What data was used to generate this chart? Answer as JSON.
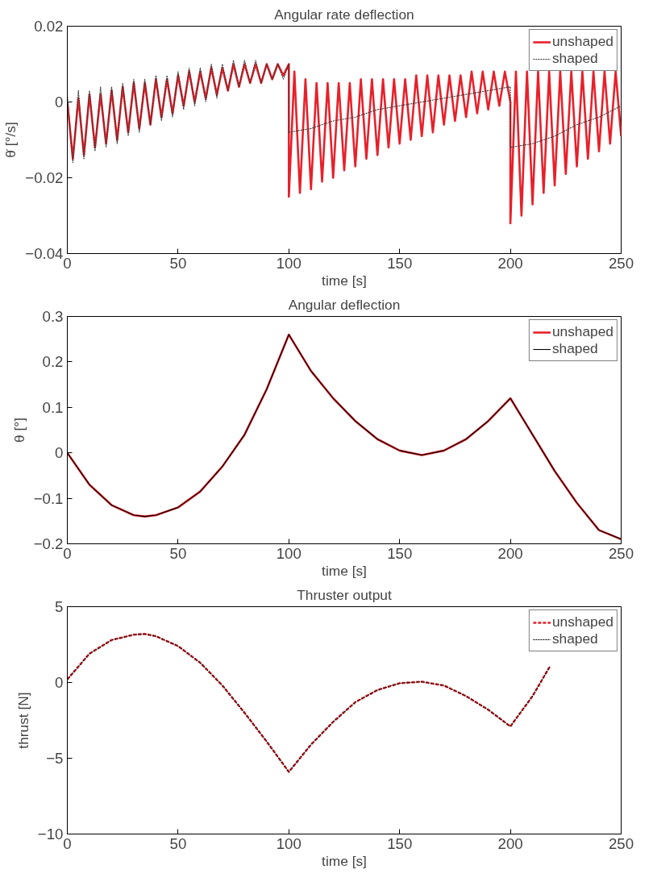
{
  "chart_data": [
    {
      "type": "line",
      "title": "Angular rate deflection",
      "xlabel": "time [s]",
      "ylabel": "θ̇ [°/s]",
      "xlim": [
        0,
        250
      ],
      "xticks": [
        0,
        50,
        100,
        150,
        200,
        250
      ],
      "ylim": [
        -0.04,
        0.02
      ],
      "yticks": [
        {
          "value": -0.04,
          "label": "−0.04"
        },
        {
          "value": -0.02,
          "label": "−0.02"
        },
        0,
        0.02
      ],
      "grid": false,
      "legend": "top right",
      "series": [
        {
          "name": "unshaped",
          "color": "#e8202a",
          "line_style": "solid",
          "x": [
            0,
            2.5,
            5,
            7.5,
            10,
            12.5,
            15,
            17.5,
            20,
            22.5,
            25,
            27.5,
            30,
            32.5,
            35,
            37.5,
            40,
            42.5,
            45,
            47.5,
            50,
            52.5,
            55,
            57.5,
            60,
            62.5,
            65,
            67.5,
            70,
            72.5,
            75,
            77.5,
            80,
            82.5,
            85,
            87.5,
            90,
            92.5,
            95,
            97.5,
            100,
            100,
            102.5,
            105,
            107.5,
            110,
            112.5,
            115,
            117.5,
            120,
            122.5,
            125,
            127.5,
            130,
            132.5,
            135,
            137.5,
            140,
            142.5,
            145,
            147.5,
            150,
            152.5,
            155,
            157.5,
            160,
            162.5,
            165,
            167.5,
            170,
            172.5,
            175,
            177.5,
            180,
            182.5,
            185,
            187.5,
            190,
            192.5,
            195,
            197.5,
            200,
            200,
            202.5,
            205,
            207.5,
            210,
            212.5,
            215,
            217.5,
            220,
            222.5,
            225,
            227.5,
            230,
            232.5,
            235,
            237.5,
            240,
            242.5,
            245,
            247.5,
            250
          ],
          "values": [
            0.0,
            -0.015,
            0.001,
            -0.014,
            0.002,
            -0.012,
            0.002,
            -0.011,
            0.003,
            -0.01,
            0.004,
            -0.008,
            0.005,
            -0.007,
            0.005,
            -0.006,
            0.006,
            -0.004,
            0.006,
            -0.003,
            0.007,
            -0.001,
            0.008,
            0.0,
            0.008,
            0.001,
            0.009,
            0.002,
            0.009,
            0.003,
            0.01,
            0.004,
            0.01,
            0.005,
            0.01,
            0.005,
            0.01,
            0.006,
            0.01,
            0.007,
            0.01,
            -0.025,
            0.008,
            -0.024,
            0.006,
            -0.023,
            0.005,
            -0.021,
            0.005,
            -0.02,
            0.005,
            -0.018,
            0.005,
            -0.017,
            0.006,
            -0.015,
            0.006,
            -0.014,
            0.006,
            -0.012,
            0.006,
            -0.011,
            0.006,
            -0.01,
            0.007,
            -0.009,
            0.007,
            -0.008,
            0.007,
            -0.006,
            0.007,
            -0.005,
            0.007,
            -0.004,
            0.008,
            -0.003,
            0.008,
            -0.002,
            0.008,
            -0.001,
            0.008,
            0.0,
            -0.032,
            0.008,
            -0.03,
            0.008,
            -0.027,
            0.008,
            -0.024,
            0.008,
            -0.022,
            0.008,
            -0.019,
            0.008,
            -0.017,
            0.008,
            -0.015,
            0.008,
            -0.013,
            0.008,
            -0.011,
            0.008,
            -0.009
          ]
        },
        {
          "name": "shaped",
          "color": "#333333",
          "line_style": "dotted",
          "x": [
            0,
            2.5,
            5,
            7.5,
            10,
            12.5,
            15,
            17.5,
            20,
            22.5,
            25,
            27.5,
            30,
            32.5,
            35,
            37.5,
            40,
            42.5,
            45,
            47.5,
            50,
            52.5,
            55,
            57.5,
            60,
            62.5,
            65,
            67.5,
            70,
            72.5,
            75,
            77.5,
            80,
            82.5,
            85,
            87.5,
            90,
            92.5,
            95,
            97.5,
            100,
            100,
            110,
            120,
            130,
            140,
            150,
            160,
            170,
            180,
            190,
            200,
            200,
            210,
            220,
            230,
            240,
            250
          ],
          "values": [
            0.002,
            -0.016,
            0.003,
            -0.015,
            0.003,
            -0.013,
            0.004,
            -0.012,
            0.004,
            -0.011,
            0.005,
            -0.009,
            0.006,
            -0.008,
            0.006,
            -0.006,
            0.007,
            -0.005,
            0.007,
            -0.004,
            0.008,
            -0.002,
            0.009,
            -0.001,
            0.009,
            0.0,
            0.01,
            0.001,
            0.01,
            0.003,
            0.011,
            0.004,
            0.011,
            0.005,
            0.011,
            0.005,
            0.01,
            0.006,
            0.01,
            0.006,
            0.01,
            -0.008,
            -0.007,
            -0.005,
            -0.004,
            -0.002,
            -0.001,
            0.0,
            0.001,
            0.002,
            0.003,
            0.004,
            -0.012,
            -0.011,
            -0.009,
            -0.006,
            -0.004,
            -0.001
          ]
        }
      ]
    },
    {
      "type": "line",
      "title": "Angular deflection",
      "xlabel": "time [s]",
      "ylabel": "θ [°]",
      "xlim": [
        0,
        250
      ],
      "xticks": [
        0,
        50,
        100,
        150,
        200,
        250
      ],
      "ylim": [
        -0.2,
        0.3
      ],
      "yticks": [
        {
          "value": -0.2,
          "label": "−0.2"
        },
        {
          "value": -0.1,
          "label": "−0.1"
        },
        0,
        0.1,
        0.2,
        0.3
      ],
      "grid": false,
      "legend": "top right",
      "series": [
        {
          "name": "unshaped",
          "color": "#e8202a",
          "line_style": "solid",
          "x": [
            0,
            10,
            20,
            30,
            35,
            40,
            50,
            60,
            70,
            80,
            90,
            100,
            110,
            120,
            130,
            140,
            150,
            160,
            170,
            180,
            190,
            200,
            210,
            220,
            230,
            240,
            250
          ],
          "values": [
            0,
            -0.07,
            -0.115,
            -0.137,
            -0.14,
            -0.137,
            -0.12,
            -0.085,
            -0.03,
            0.04,
            0.14,
            0.26,
            0.18,
            0.12,
            0.07,
            0.03,
            0.005,
            -0.005,
            0.005,
            0.03,
            0.07,
            0.12,
            0.04,
            -0.04,
            -0.11,
            -0.17,
            -0.19
          ]
        },
        {
          "name": "shaped",
          "color": "#000000",
          "line_style": "solid",
          "x": [
            0,
            10,
            20,
            30,
            35,
            40,
            50,
            60,
            70,
            80,
            90,
            100,
            110,
            120,
            130,
            140,
            150,
            160,
            170,
            180,
            190,
            200,
            210,
            220,
            230,
            240,
            250
          ],
          "values": [
            0,
            -0.07,
            -0.115,
            -0.137,
            -0.14,
            -0.137,
            -0.12,
            -0.085,
            -0.03,
            0.04,
            0.14,
            0.26,
            0.18,
            0.12,
            0.07,
            0.03,
            0.005,
            -0.005,
            0.005,
            0.03,
            0.07,
            0.12,
            0.04,
            -0.04,
            -0.11,
            -0.17,
            -0.19
          ]
        }
      ]
    },
    {
      "type": "line",
      "title": "Thruster output",
      "xlabel": "time [s]",
      "ylabel": "thrust [N]",
      "xlim": [
        0,
        250
      ],
      "xticks": [
        0,
        50,
        100,
        150,
        200,
        250
      ],
      "ylim": [
        -10,
        5
      ],
      "yticks": [
        {
          "value": -10,
          "label": "−10"
        },
        {
          "value": -5,
          "label": "−5"
        },
        0,
        5
      ],
      "grid": false,
      "legend": "top right",
      "series": [
        {
          "name": "unshaped",
          "color": "#e8202a",
          "line_style": "dashed",
          "x": [
            0,
            10,
            20,
            30,
            35,
            40,
            50,
            60,
            70,
            80,
            90,
            100,
            110,
            120,
            130,
            140,
            150,
            160,
            170,
            180,
            190,
            200,
            210,
            218
          ],
          "values": [
            0.2,
            1.9,
            2.8,
            3.15,
            3.2,
            3.05,
            2.4,
            1.3,
            -0.2,
            -2.0,
            -3.9,
            -5.9,
            -4.1,
            -2.6,
            -1.3,
            -0.5,
            -0.05,
            0.05,
            -0.2,
            -0.9,
            -1.8,
            -2.9,
            -0.9,
            1.1
          ]
        },
        {
          "name": "shaped",
          "color": "#000000",
          "line_style": "dotted",
          "x": [
            0,
            10,
            20,
            30,
            35,
            40,
            50,
            60,
            70,
            80,
            90,
            100,
            110,
            120,
            130,
            140,
            150,
            160,
            170,
            180,
            190,
            200,
            210,
            218
          ],
          "values": [
            0.2,
            1.9,
            2.8,
            3.15,
            3.2,
            3.05,
            2.4,
            1.3,
            -0.2,
            -2.0,
            -3.9,
            -5.9,
            -4.1,
            -2.6,
            -1.3,
            -0.5,
            -0.05,
            0.05,
            -0.2,
            -0.9,
            -1.8,
            -2.9,
            -0.9,
            1.1
          ]
        }
      ]
    }
  ]
}
